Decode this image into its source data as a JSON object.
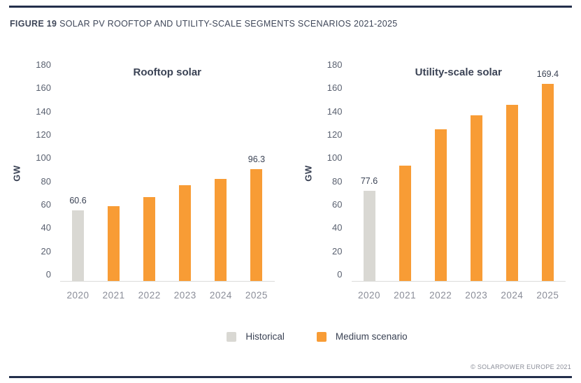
{
  "figure": {
    "label": "FIGURE 19",
    "title": "SOLAR PV ROOFTOP AND UTILITY-SCALE SEGMENTS SCENARIOS 2021-2025"
  },
  "colors": {
    "historical": "#D9D8D3",
    "medium": "#F89C35",
    "rule": "#232F4B"
  },
  "chart_data": [
    {
      "type": "bar",
      "title": "Rooftop solar",
      "ylabel": "GW",
      "ylim": [
        0,
        180
      ],
      "yticks": [
        0,
        20,
        40,
        60,
        80,
        100,
        120,
        140,
        160,
        180
      ],
      "grid": false,
      "categories": [
        "2020",
        "2021",
        "2022",
        "2023",
        "2024",
        "2025"
      ],
      "series": [
        {
          "name": "Historical",
          "color_key": "historical",
          "values": [
            60.6,
            null,
            null,
            null,
            null,
            null
          ]
        },
        {
          "name": "Medium scenario",
          "color_key": "medium",
          "values": [
            null,
            64,
            72,
            82.5,
            87.5,
            96.3
          ]
        }
      ],
      "annotations": [
        {
          "category": "2020",
          "text": "60.6"
        },
        {
          "category": "2025",
          "text": "96.3"
        }
      ]
    },
    {
      "type": "bar",
      "title": "Utility-scale solar",
      "ylabel": "GW",
      "ylim": [
        0,
        180
      ],
      "yticks": [
        0,
        20,
        40,
        60,
        80,
        100,
        120,
        140,
        160,
        180
      ],
      "grid": false,
      "categories": [
        "2020",
        "2021",
        "2022",
        "2023",
        "2024",
        "2025"
      ],
      "series": [
        {
          "name": "Historical",
          "color_key": "historical",
          "values": [
            77.6,
            null,
            null,
            null,
            null,
            null
          ]
        },
        {
          "name": "Medium scenario",
          "color_key": "medium",
          "values": [
            null,
            99,
            130.5,
            142.5,
            151,
            169.4
          ]
        }
      ],
      "annotations": [
        {
          "category": "2020",
          "text": "77.6"
        },
        {
          "category": "2025",
          "text": "169.4"
        }
      ]
    }
  ],
  "legend": [
    {
      "label": "Historical",
      "color_key": "historical"
    },
    {
      "label": "Medium scenario",
      "color_key": "medium"
    }
  ],
  "footer": {
    "copyright": "© SOLARPOWER EUROPE 2021"
  }
}
